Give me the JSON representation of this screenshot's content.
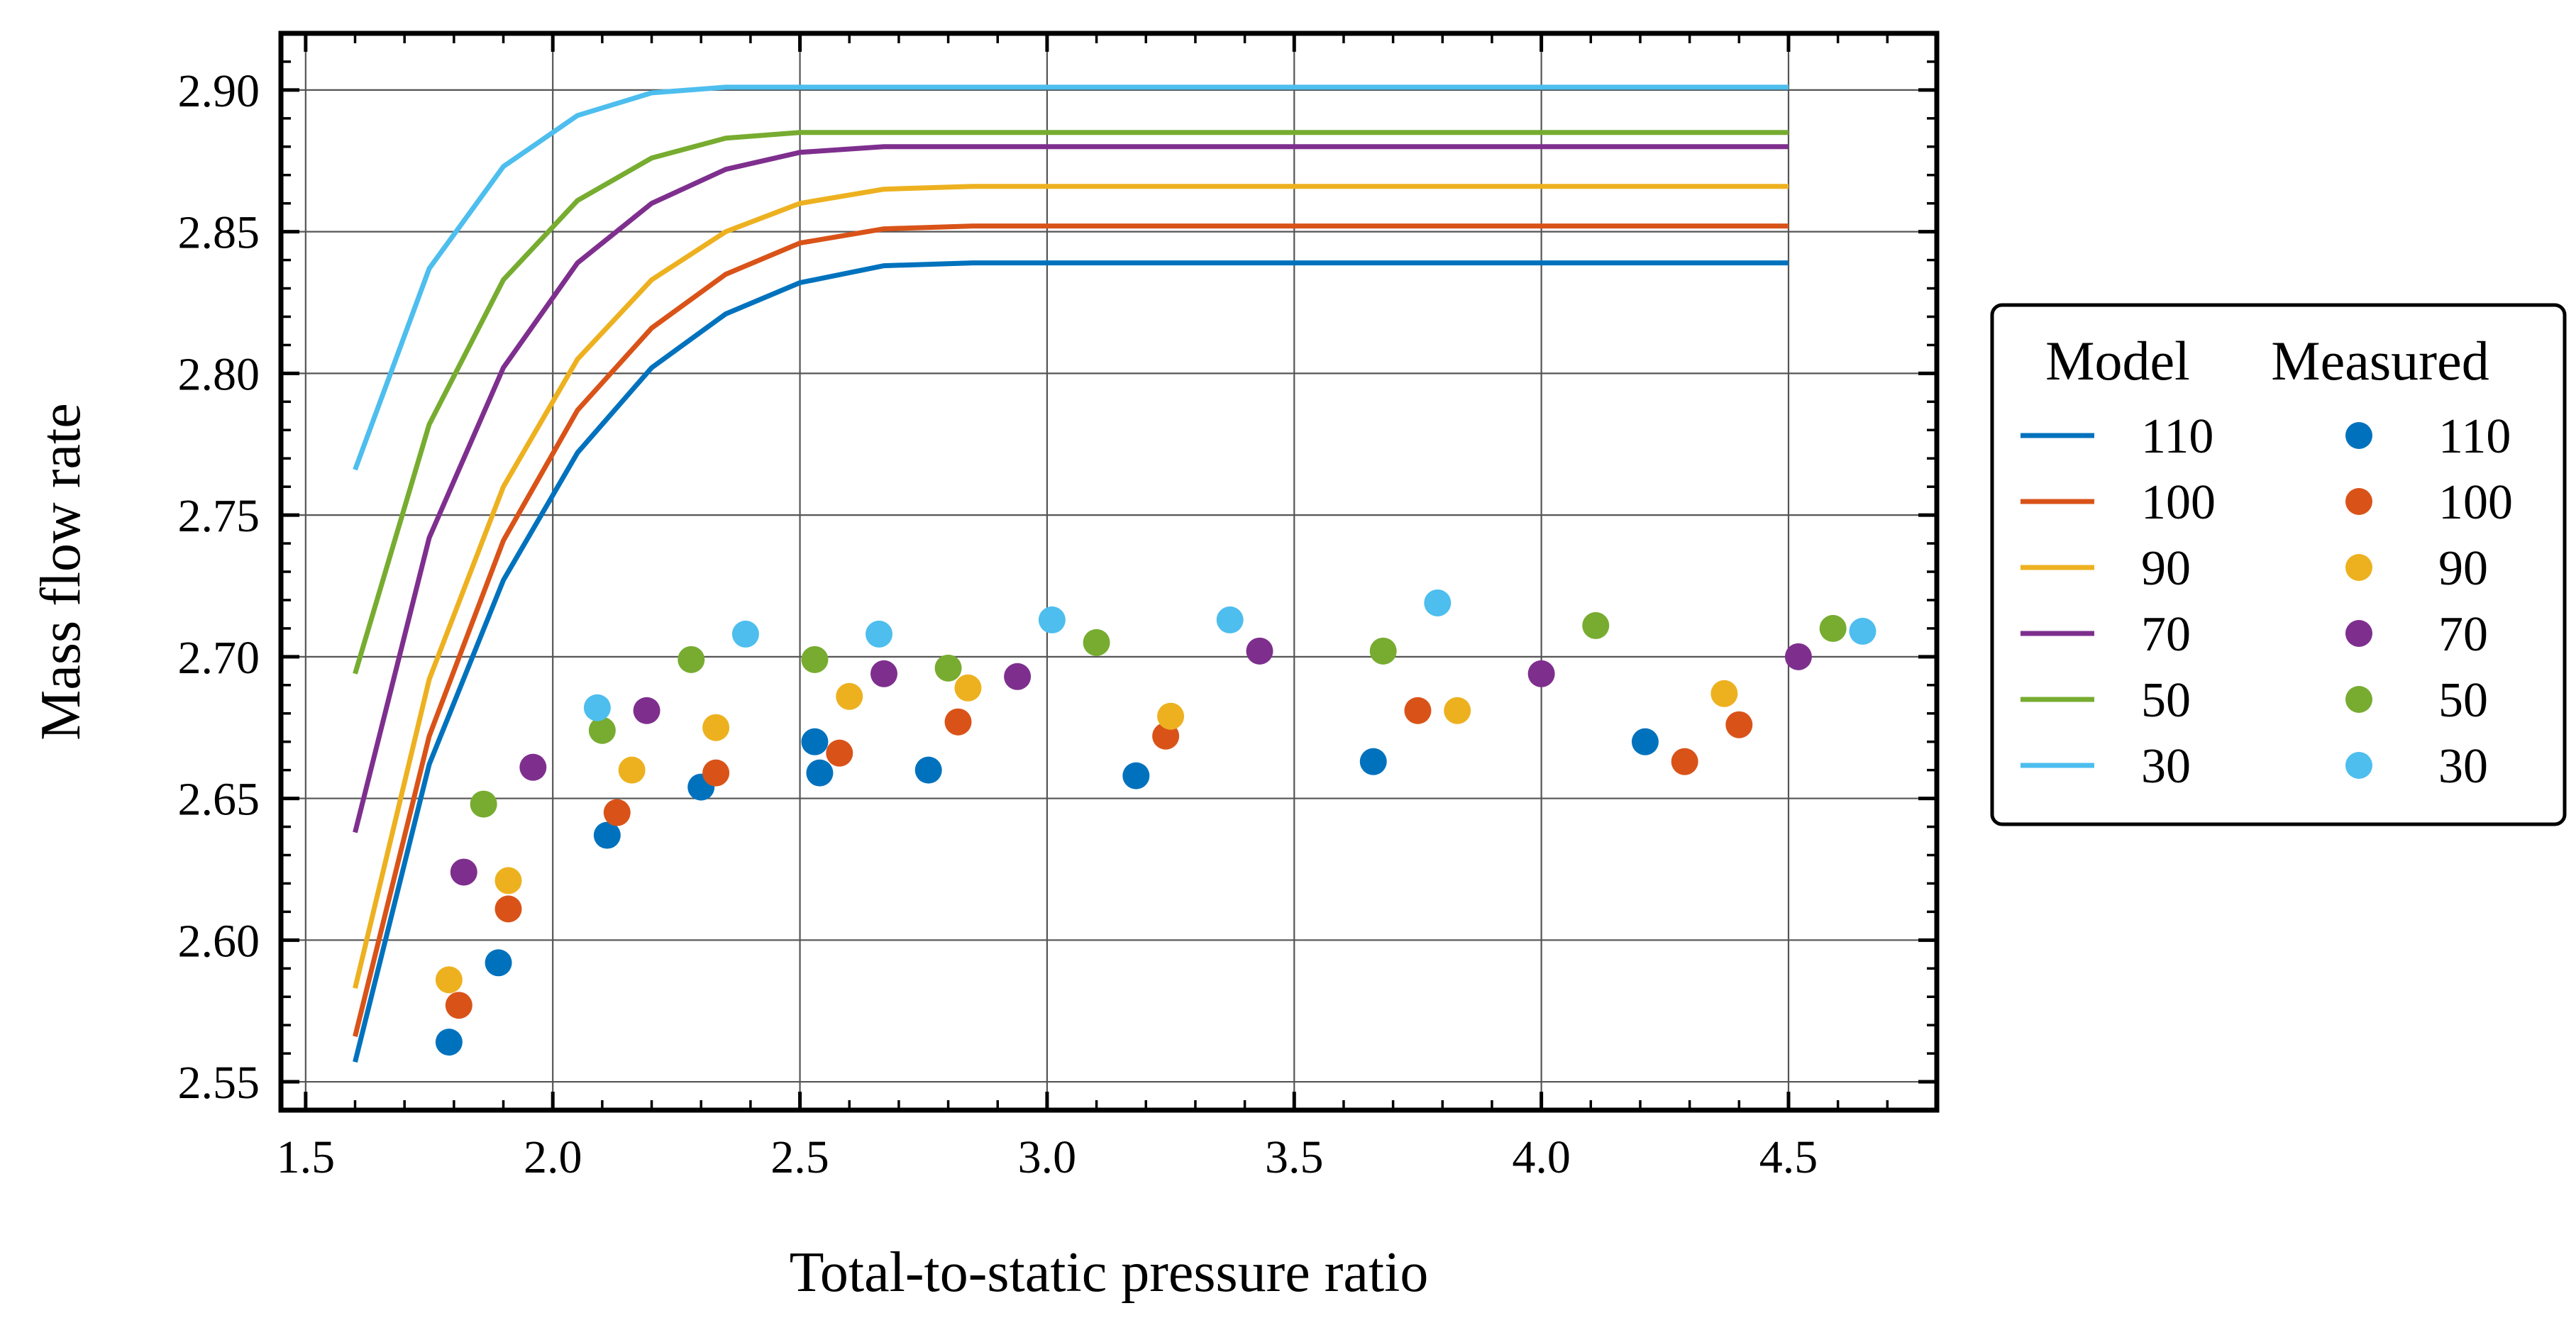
{
  "chart_data": {
    "type": "line",
    "xlabel": "Total-to-static pressure ratio",
    "ylabel": "Mass flow rate",
    "xlim": [
      1.45,
      4.8
    ],
    "ylim": [
      2.54,
      2.92
    ],
    "xticks": [
      "1.5",
      "2.0",
      "2.5",
      "3.0",
      "3.5",
      "4.0",
      "4.5"
    ],
    "yticks": [
      "2.55",
      "2.60",
      "2.65",
      "2.70",
      "2.75",
      "2.80",
      "2.85",
      "2.90"
    ],
    "grid": true,
    "legend": {
      "placement": "right-outside",
      "model_title": "Model",
      "measured_title": "Measured"
    },
    "model_x": [
      1.6,
      1.75,
      1.9,
      2.05,
      2.2,
      2.35,
      2.5,
      2.67,
      2.85,
      3.0,
      3.5,
      4.0,
      4.5
    ],
    "series": [
      {
        "name": "110",
        "color": "#0072BD",
        "model_y": [
          2.557,
          2.662,
          2.727,
          2.772,
          2.802,
          2.821,
          2.832,
          2.838,
          2.839,
          2.839,
          2.839,
          2.839,
          2.839
        ],
        "measured": [
          [
            1.79,
            2.564
          ],
          [
            1.89,
            2.592
          ],
          [
            2.11,
            2.637
          ],
          [
            2.3,
            2.654
          ],
          [
            2.53,
            2.67
          ],
          [
            2.54,
            2.659
          ],
          [
            2.76,
            2.66
          ],
          [
            3.18,
            2.658
          ],
          [
            3.66,
            2.663
          ],
          [
            4.21,
            2.67
          ]
        ]
      },
      {
        "name": "100",
        "color": "#D95319",
        "model_y": [
          2.566,
          2.672,
          2.741,
          2.787,
          2.816,
          2.835,
          2.846,
          2.851,
          2.852,
          2.852,
          2.852,
          2.852,
          2.852
        ],
        "measured": [
          [
            1.81,
            2.577
          ],
          [
            1.91,
            2.611
          ],
          [
            2.13,
            2.645
          ],
          [
            2.33,
            2.659
          ],
          [
            2.58,
            2.666
          ],
          [
            2.82,
            2.677
          ],
          [
            3.24,
            2.672
          ],
          [
            3.75,
            2.681
          ],
          [
            4.29,
            2.663
          ],
          [
            4.4,
            2.676
          ]
        ]
      },
      {
        "name": "90",
        "color": "#EDB120",
        "model_y": [
          2.583,
          2.692,
          2.76,
          2.805,
          2.833,
          2.85,
          2.86,
          2.865,
          2.866,
          2.866,
          2.866,
          2.866,
          2.866
        ],
        "measured": [
          [
            1.79,
            2.586
          ],
          [
            1.91,
            2.621
          ],
          [
            2.16,
            2.66
          ],
          [
            2.33,
            2.675
          ],
          [
            2.6,
            2.686
          ],
          [
            2.84,
            2.689
          ],
          [
            3.25,
            2.679
          ],
          [
            3.83,
            2.681
          ],
          [
            4.37,
            2.687
          ]
        ]
      },
      {
        "name": "70",
        "color": "#7E2F8E",
        "model_y": [
          2.638,
          2.742,
          2.802,
          2.839,
          2.86,
          2.872,
          2.878,
          2.88,
          2.88,
          2.88,
          2.88,
          2.88,
          2.88
        ],
        "measured": [
          [
            1.82,
            2.624
          ],
          [
            1.96,
            2.661
          ],
          [
            2.19,
            2.681
          ],
          [
            2.67,
            2.694
          ],
          [
            2.94,
            2.693
          ],
          [
            3.43,
            2.702
          ],
          [
            4.0,
            2.694
          ],
          [
            4.52,
            2.7
          ]
        ]
      },
      {
        "name": "50",
        "color": "#77AC30",
        "model_y": [
          2.694,
          2.782,
          2.833,
          2.861,
          2.876,
          2.883,
          2.885,
          2.885,
          2.885,
          2.885,
          2.885,
          2.885,
          2.885
        ],
        "measured": [
          [
            1.86,
            2.648
          ],
          [
            2.1,
            2.674
          ],
          [
            2.28,
            2.699
          ],
          [
            2.53,
            2.699
          ],
          [
            2.8,
            2.696
          ],
          [
            3.1,
            2.705
          ],
          [
            3.68,
            2.702
          ],
          [
            4.11,
            2.711
          ],
          [
            4.59,
            2.71
          ]
        ]
      },
      {
        "name": "30",
        "color": "#4DBEEE",
        "model_y": [
          2.766,
          2.837,
          2.873,
          2.891,
          2.899,
          2.901,
          2.901,
          2.901,
          2.901,
          2.901,
          2.901,
          2.901,
          2.901
        ],
        "measured": [
          [
            2.09,
            2.682
          ],
          [
            2.39,
            2.708
          ],
          [
            2.66,
            2.708
          ],
          [
            3.01,
            2.713
          ],
          [
            3.37,
            2.713
          ],
          [
            3.79,
            2.719
          ],
          [
            4.65,
            2.709
          ]
        ]
      }
    ]
  }
}
